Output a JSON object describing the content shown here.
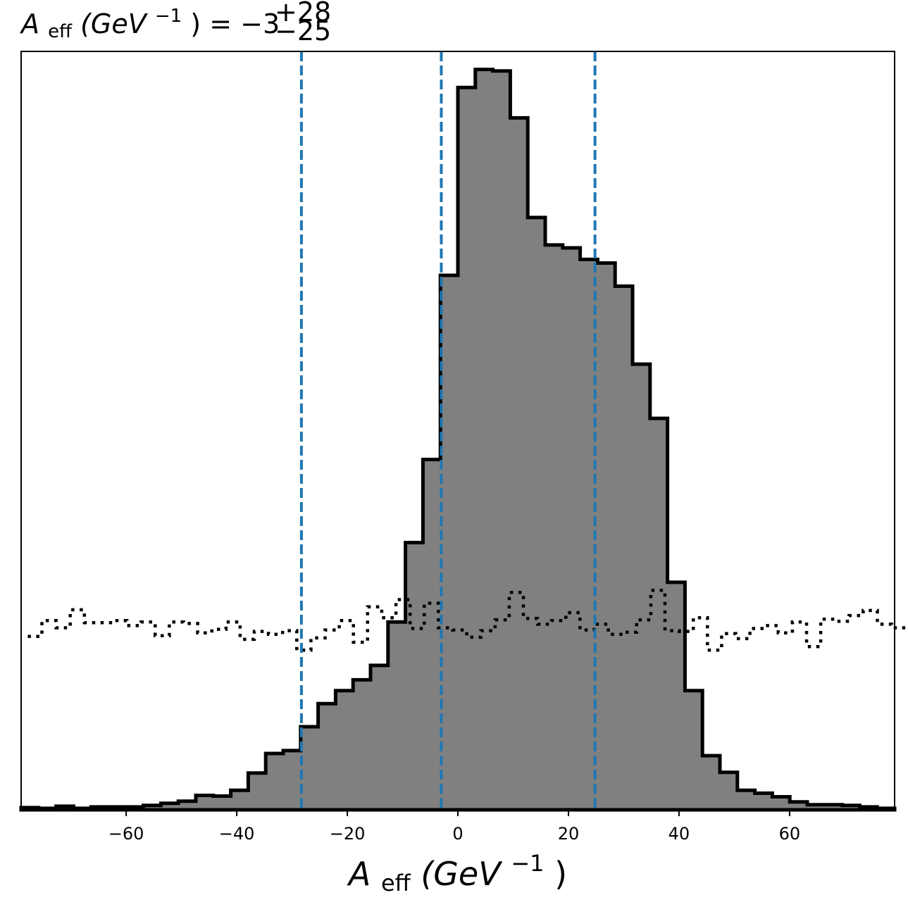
{
  "chart_data": {
    "type": "histogram",
    "title": {
      "sym": "A",
      "sub": "eff",
      "unit": "(GeV",
      "exp": "−1",
      "close": ")",
      "eq": " = −3",
      "plus": "+28",
      "minus": "−25"
    },
    "xlabel": {
      "sym": "A",
      "sub": "eff",
      "unit": "(GeV",
      "exp": "−1",
      "close": ")"
    },
    "xlim": [
      -79,
      79
    ],
    "ylim": [
      0,
      1050
    ],
    "xticks": [
      -60,
      -40,
      -20,
      0,
      20,
      40,
      60
    ],
    "xtick_labels": [
      "−60",
      "−40",
      "−20",
      "0",
      "20",
      "40",
      "60"
    ],
    "yticks_shown": false,
    "bin_edges_start": -79,
    "bin_width": 3.16,
    "posterior_counts": [
      3,
      2,
      5,
      2,
      4,
      4,
      4,
      6,
      9,
      12,
      20,
      19,
      27,
      51,
      78,
      82,
      115,
      147,
      165,
      180,
      200,
      260,
      370,
      485,
      740,
      1000,
      1025,
      1023,
      958,
      820,
      782,
      778,
      762,
      757,
      725,
      617,
      542,
      315,
      165,
      75,
      52,
      27,
      23,
      18,
      11,
      7,
      7,
      6,
      4,
      2
    ],
    "prior_counts": [
      240,
      262,
      252,
      277,
      259,
      259,
      262,
      255,
      260,
      241,
      260,
      258,
      245,
      250,
      260,
      236,
      247,
      243,
      248,
      221,
      238,
      249,
      262,
      232,
      281,
      266,
      291,
      251,
      286,
      252,
      249,
      239,
      248,
      263,
      301,
      265,
      257,
      262,
      273,
      249,
      257,
      243,
      246,
      263,
      304,
      248,
      247,
      266,
      221,
      244,
      237,
      251,
      255,
      245,
      260,
      226,
      264,
      261,
      269,
      276,
      257,
      252
    ],
    "series": [
      {
        "name": "",
        "style": "filled step",
        "fill": "#808080",
        "edge": "#000000"
      },
      {
        "name": "",
        "style": "dotted step",
        "edge": "#000000"
      }
    ],
    "vlines": [
      -28.3,
      -3.0,
      24.8
    ],
    "vline_color": "#1f77b4",
    "grid": false
  }
}
